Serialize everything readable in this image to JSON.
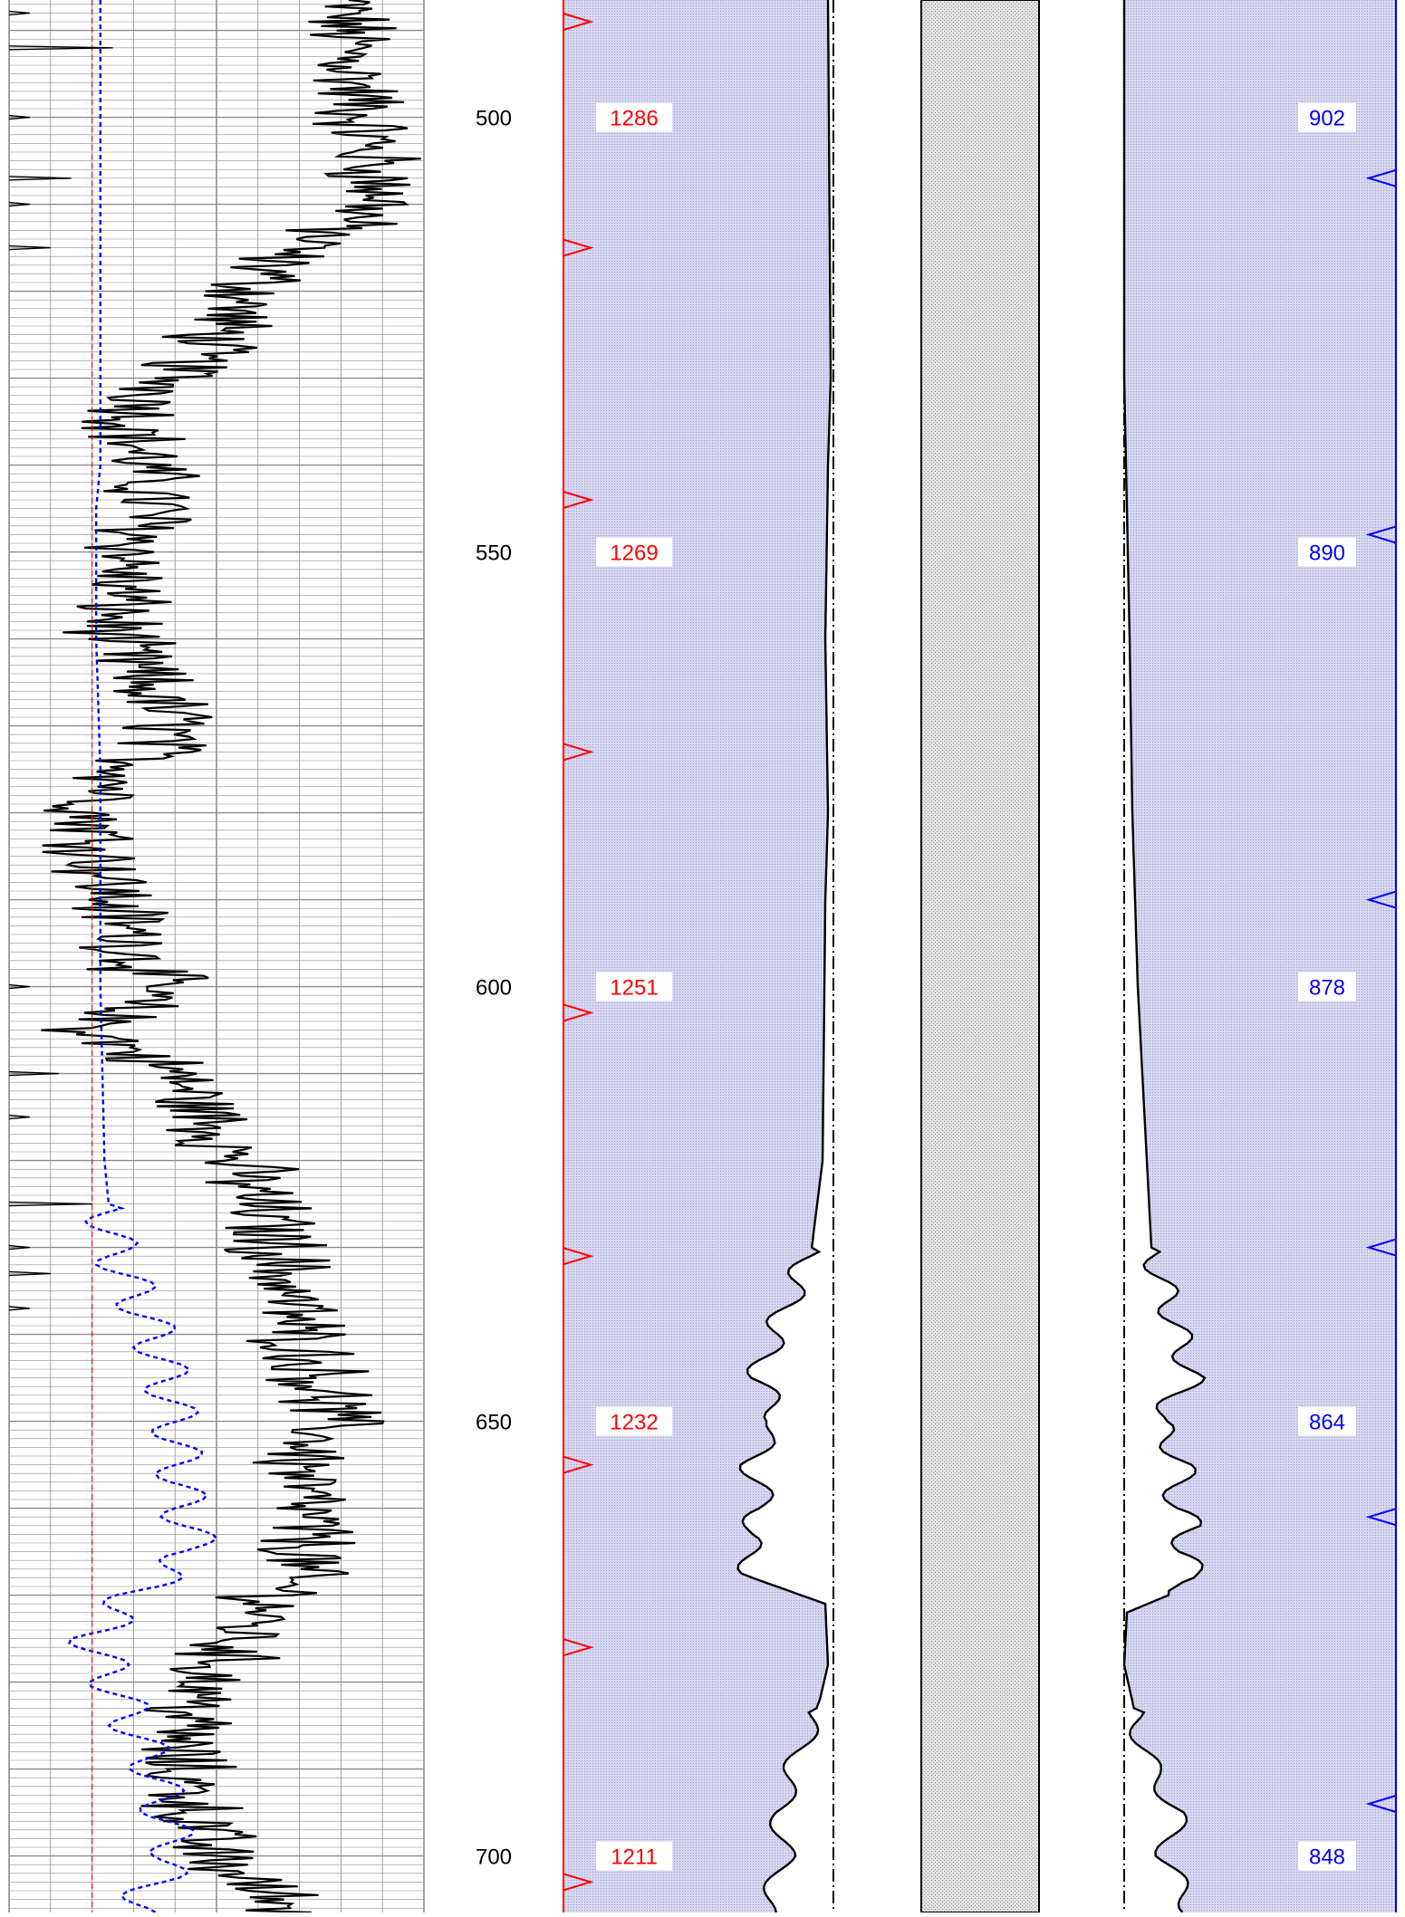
{
  "colors": {
    "grid": "#8c8c8c",
    "curve": "#000000",
    "dashed_curve": "#0000ff",
    "cutoff_line": "#ff0000",
    "left_track_marker": "#ff0000",
    "right_track_marker": "#0000ff",
    "shading": "#c8c8ea",
    "stipple": "#d6d6d6"
  },
  "depth_labels": [
    "500",
    "550",
    "600",
    "650",
    "700"
  ],
  "left_value_labels": [
    "1286",
    "1269",
    "1251",
    "1232",
    "1211"
  ],
  "right_value_labels": [
    "902",
    "890",
    "878",
    "864",
    "848"
  ],
  "chart_data": {
    "type": "line",
    "title": "",
    "depth_axis": {
      "ticks": [
        500,
        550,
        600,
        650,
        700
      ],
      "range": [
        486.5,
        706.5
      ],
      "direction": "increasing downward"
    },
    "tracks": [
      {
        "id": "track-1",
        "grid": true,
        "series": [
          {
            "style": "solid black, high-frequency",
            "x_range": [
              0,
              1
            ],
            "x": [
              0.8,
              0.85,
              0.9,
              0.65,
              0.5,
              0.3,
              0.35,
              0.28,
              0.25,
              0.4,
              0.2,
              0.25,
              0.3,
              0.35,
              0.2,
              0.4,
              0.55,
              0.65,
              0.7,
              0.75,
              0.78,
              0.7,
              0.72,
              0.65,
              0.55,
              0.45,
              0.4,
              0.45,
              0.48,
              0.7
            ],
            "depth": [
              486.5,
              500,
              510,
              516,
              525,
              535,
              545,
              552,
              560,
              570,
              580,
              590,
              595,
              600,
              605,
              610,
              620,
              630,
              640,
              645,
              650,
              655,
              665,
              670,
              675,
              682,
              688,
              695,
              700,
              706.5
            ]
          },
          {
            "style": "dashed blue",
            "x_range": [
              0,
              1
            ],
            "x": [
              0.22,
              0.22,
              0.22,
              0.22,
              0.21,
              0.21,
              0.22,
              0.22,
              0.22,
              0.23,
              0.25,
              0.3,
              0.35,
              0.38,
              0.4,
              0.42,
              0.45,
              0.3,
              0.2,
              0.25,
              0.35,
              0.4,
              0.3
            ],
            "depth": [
              486.5,
              510,
              530,
              540,
              545,
              560,
              575,
              590,
              600,
              620,
              630,
              635,
              640,
              645,
              650,
              660,
              665,
              670,
              675,
              680,
              690,
              700,
              706.5
            ]
          },
          {
            "style": "dashed red vertical reference line",
            "x_range": [
              0,
              1
            ],
            "x": [
              0.2,
              0.2
            ],
            "depth": [
              486.5,
              706.5
            ]
          },
          {
            "style": "thin black spikes along left edge",
            "x_range": [
              0,
              1
            ],
            "x": [
              0.05,
              0.25,
              0.05,
              0.15,
              0.05,
              0.1,
              0.05,
              0.12,
              0.05,
              0.2,
              0.05,
              0.1,
              0.05
            ],
            "depth": [
              488,
              492,
              500,
              507,
              510,
              515,
              600,
              610,
              615,
              625,
              630,
              633,
              637
            ]
          }
        ]
      },
      {
        "id": "track-2",
        "shaded": true,
        "value_labels": [
          1286,
          1269,
          1251,
          1232,
          1211
        ],
        "marker_depths": [
          489,
          515,
          544,
          573,
          603,
          631,
          655,
          676,
          703
        ],
        "series": [
          {
            "style": "solid black",
            "x_range": [
              0,
              1
            ],
            "x": [
              0.98,
              0.99,
              0.98,
              0.97,
              0.98,
              0.97,
              0.96,
              0.92,
              0.85,
              0.78,
              0.72,
              0.8,
              0.74,
              0.7,
              0.74,
              0.68,
              0.7,
              0.97,
              0.98,
              0.95,
              0.85,
              0.8,
              0.82,
              0.75
            ],
            "depth": [
              486.5,
              530,
              540,
              560,
              580,
              590,
              620,
              630,
              635,
              640,
              645,
              650,
              652,
              655,
              660,
              663,
              668,
              671,
              678,
              682,
              690,
              695,
              700,
              706.5
            ]
          },
          {
            "style": "dash-dot black vertical reference",
            "x_range": [
              0,
              1
            ],
            "x": [
              1.0,
              1.0
            ],
            "depth": [
              486.5,
              706.5
            ]
          }
        ]
      },
      {
        "id": "track-3",
        "stippled": true,
        "series": []
      },
      {
        "id": "track-4",
        "shaded": true,
        "value_labels": [
          902,
          890,
          878,
          864,
          848
        ],
        "marker_depths": [
          507,
          548,
          590,
          630,
          661,
          694
        ],
        "series": [
          {
            "style": "solid black",
            "x_range": [
              0,
              1
            ],
            "x": [
              0.0,
              0.0,
              0.01,
              0.02,
              0.03,
              0.05,
              0.1,
              0.15,
              0.2,
              0.25,
              0.12,
              0.22,
              0.18,
              0.26,
              0.2,
              0.28,
              0.24,
              0.01,
              0.0,
              0.05,
              0.1,
              0.2,
              0.15,
              0.25
            ],
            "depth": [
              486.5,
              530,
              545,
              560,
              580,
              600,
              630,
              635,
              640,
              645,
              650,
              655,
              660,
              662,
              665,
              668,
              669,
              672,
              678,
              685,
              690,
              695,
              700,
              706.5
            ]
          },
          {
            "style": "dash-dot black vertical reference",
            "x_range": [
              0,
              1
            ],
            "x": [
              0.0,
              0.0
            ],
            "depth": [
              486.5,
              706.5
            ]
          }
        ]
      }
    ]
  }
}
